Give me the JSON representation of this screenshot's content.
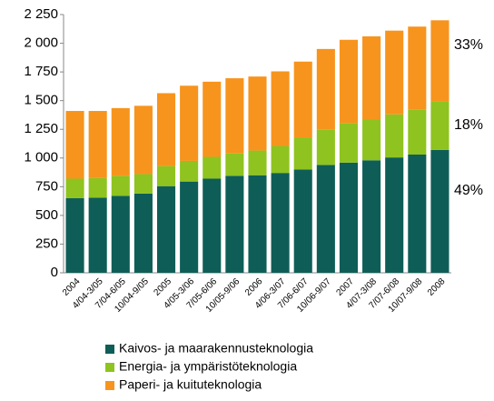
{
  "chart_data": {
    "type": "stacked_bar",
    "categories": [
      "2004",
      "4/04-3/05",
      "7/04-6/05",
      "10/04-9/05",
      "2005",
      "4/05-3/06",
      "7/05-6/06",
      "10/05-9/06",
      "2006",
      "4/06-3/07",
      "7/06-6/07",
      "10/06-9/07",
      "2007",
      "4/07-3/08",
      "7/07-6/08",
      "10/07-9/08",
      "2008"
    ],
    "series": [
      {
        "name": "Kaivos- ja maarakennusteknologia",
        "color": "#0e5e57",
        "values": [
          650,
          655,
          670,
          690,
          755,
          795,
          820,
          845,
          850,
          870,
          900,
          940,
          960,
          980,
          1005,
          1030,
          1070
        ]
      },
      {
        "name": "Energia- ja ympäristöteknologia",
        "color": "#8fc31f",
        "values": [
          170,
          170,
          175,
          170,
          175,
          180,
          190,
          195,
          215,
          235,
          280,
          305,
          345,
          355,
          375,
          390,
          420
        ]
      },
      {
        "name": "Paperi- ja kuituteknologia",
        "color": "#f7941d",
        "values": [
          590,
          585,
          590,
          595,
          635,
          655,
          655,
          655,
          645,
          650,
          660,
          705,
          725,
          725,
          730,
          725,
          710
        ]
      }
    ],
    "annotations": [
      "33%",
      "18%",
      "49%"
    ],
    "ylim": [
      0,
      2250
    ],
    "yticks": [
      0,
      250,
      500,
      750,
      {
        "value": 1000,
        "label": "1 000"
      },
      {
        "value": 1250,
        "label": "1 250"
      },
      {
        "value": 1500,
        "label": "1 500"
      },
      {
        "value": 1750,
        "label": "1 750"
      },
      {
        "value": 2000,
        "label": "2 000"
      },
      {
        "value": 2250,
        "label": "2 250"
      }
    ],
    "legend": "bottom"
  }
}
